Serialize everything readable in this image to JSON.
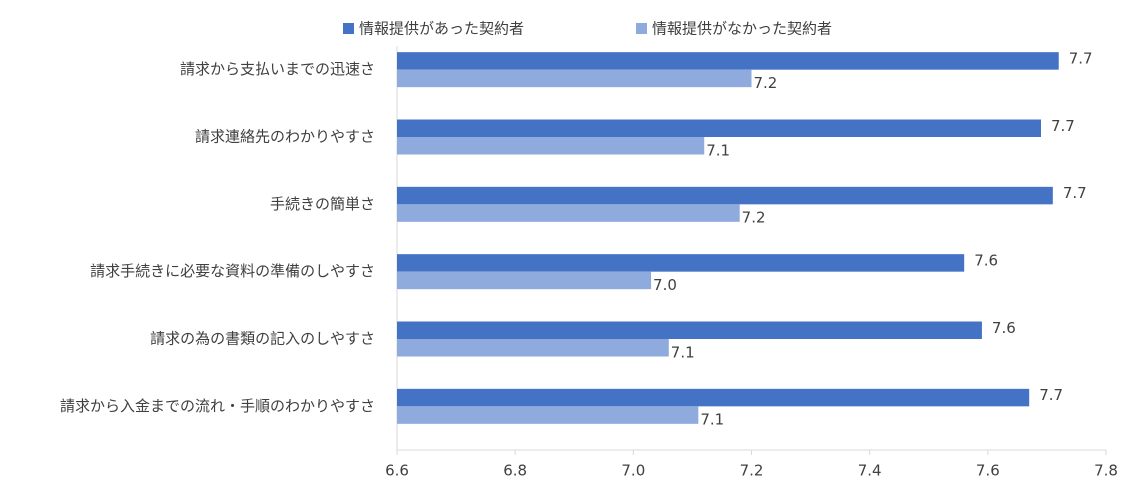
{
  "chart_data": {
    "type": "hbar",
    "categories": [
      "請求から支払いまでの迅速さ",
      "請求連絡先のわかりやすさ",
      "手続きの簡単さ",
      "請求手続きに必要な資料の準備のしやすさ",
      "請求の為の書類の記入のしやすさ",
      "請求から入金までの流れ・手順のわかりやすさ"
    ],
    "series": [
      {
        "name": "情報提供があった契約者",
        "color": "#4472c4",
        "values": [
          7.72,
          7.69,
          7.71,
          7.56,
          7.59,
          7.67
        ],
        "value_labels": [
          "7.7",
          "7.7",
          "7.7",
          "7.6",
          "7.6",
          "7.7"
        ]
      },
      {
        "name": "情報提供がなかった契約者",
        "color": "#8faadc",
        "values": [
          7.2,
          7.12,
          7.18,
          7.03,
          7.06,
          7.11
        ],
        "value_labels": [
          "7.2",
          "7.1",
          "7.2",
          "7.0",
          "7.1",
          "7.1"
        ]
      }
    ],
    "xlim": [
      6.6,
      7.8
    ],
    "xticks": [
      6.6,
      6.8,
      {
        "value": 7,
        "label": "7.0"
      },
      7.2,
      7.4,
      7.6,
      7.8
    ],
    "legend": "top"
  }
}
